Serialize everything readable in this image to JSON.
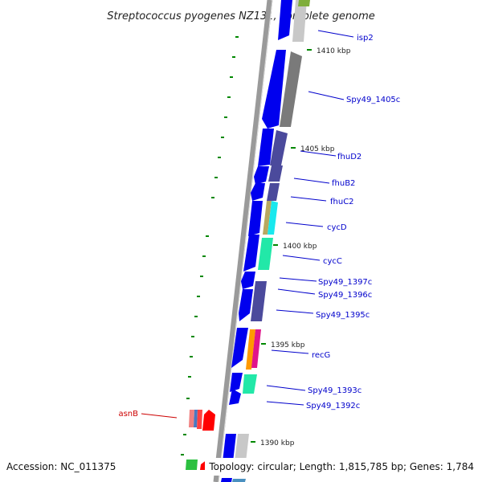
{
  "title": "Streptococcus pyogenes NZ131, complete genome",
  "accession": "Accession: NC_011375",
  "topology": "Topology: circular; Length: 1,815,785 bp; Genes: 1,784",
  "kbp_labels": [
    {
      "text": "1410 kbp"
    },
    {
      "text": "1405 kbp"
    },
    {
      "text": "1400 kbp"
    },
    {
      "text": "1395 kbp"
    },
    {
      "text": "1390 kbp"
    }
  ],
  "gene_labels": [
    {
      "text": "isp2",
      "color": "#0000cc"
    },
    {
      "text": "Spy49_1405c",
      "color": "#0000cc"
    },
    {
      "text": "fhuD2",
      "color": "#0000cc"
    },
    {
      "text": "fhuB2",
      "color": "#0000cc"
    },
    {
      "text": "fhuC2",
      "color": "#0000cc"
    },
    {
      "text": "cycD",
      "color": "#0000cc"
    },
    {
      "text": "cycC",
      "color": "#0000cc"
    },
    {
      "text": "Spy49_1397c",
      "color": "#0000cc"
    },
    {
      "text": "Spy49_1396c",
      "color": "#0000cc"
    },
    {
      "text": "Spy49_1395c",
      "color": "#0000cc"
    },
    {
      "text": "recG",
      "color": "#0000cc"
    },
    {
      "text": "Spy49_1393c",
      "color": "#0000cc"
    },
    {
      "text": "Spy49_1392c",
      "color": "#0000cc"
    },
    {
      "text": "asnB",
      "color": "#cc0000"
    }
  ],
  "colors": {
    "backbone": "#888888",
    "cds": "#0000ee",
    "tick": "#008800",
    "cog_gray": "#7a7a7a",
    "cog_navy": "#4b4a9c",
    "cog_cyan": "#19e8ee",
    "cog_teal": "#22e8a8",
    "cog_orange": "#ff9900",
    "cog_magenta": "#e0148c",
    "cog_red": "#ff0000"
  }
}
